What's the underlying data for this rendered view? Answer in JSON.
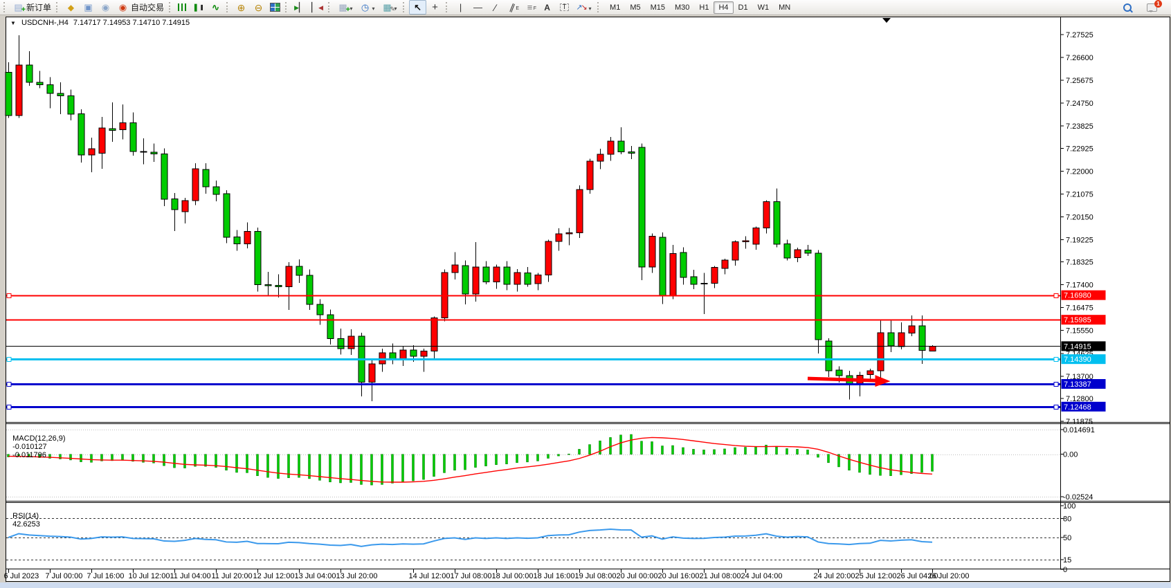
{
  "toolbar": {
    "groups": [
      {
        "name": "trade",
        "items": [
          {
            "name": "new-order",
            "icon": "new-order",
            "label": "新订单"
          }
        ]
      },
      {
        "name": "quick",
        "items": [
          {
            "name": "market-watch",
            "icon": "market-watch"
          },
          {
            "name": "profile",
            "icon": "profile"
          },
          {
            "name": "signals",
            "icon": "signals"
          },
          {
            "name": "autotrading",
            "icon": "autotrading",
            "label": "自动交易"
          }
        ]
      },
      {
        "name": "chart-type",
        "items": [
          {
            "name": "bar-chart",
            "icon": "bar-chart"
          },
          {
            "name": "candlestick-chart",
            "icon": "candlestick-chart"
          },
          {
            "name": "line-chart",
            "icon": "line-chart"
          }
        ]
      },
      {
        "name": "zoom",
        "items": [
          {
            "name": "zoom-in",
            "icon": "zoom-in"
          },
          {
            "name": "zoom-out",
            "icon": "zoom-out"
          },
          {
            "name": "tile-windows",
            "icon": "tile-windows"
          }
        ]
      },
      {
        "name": "scroll",
        "items": [
          {
            "name": "auto-scroll",
            "icon": "auto-scroll"
          },
          {
            "name": "chart-shift",
            "icon": "chart-shift"
          }
        ]
      },
      {
        "name": "insert",
        "items": [
          {
            "name": "indicators",
            "icon": "indicators",
            "dropdown": true
          },
          {
            "name": "periods",
            "icon": "periods",
            "dropdown": true
          },
          {
            "name": "templates",
            "icon": "templates",
            "dropdown": true
          }
        ]
      },
      {
        "name": "pointer",
        "items": [
          {
            "name": "cursor",
            "icon": "cursor",
            "pressed": true
          },
          {
            "name": "crosshair",
            "icon": "crosshair"
          }
        ]
      },
      {
        "name": "objects",
        "items": [
          {
            "name": "vertical-line",
            "icon": "vertical-line"
          },
          {
            "name": "horizontal-line",
            "icon": "horizontal-line"
          },
          {
            "name": "trendline",
            "icon": "trendline"
          },
          {
            "name": "equidistant-channel",
            "icon": "equidistant-channel"
          },
          {
            "name": "fibonacci",
            "icon": "fibonacci"
          },
          {
            "name": "text",
            "icon": "text"
          },
          {
            "name": "text-label",
            "icon": "text-label"
          },
          {
            "name": "arrows",
            "icon": "arrows",
            "dropdown": true
          }
        ]
      }
    ],
    "timeframes": {
      "options": [
        "M1",
        "M5",
        "M15",
        "M30",
        "H1",
        "H4",
        "D1",
        "W1",
        "MN"
      ],
      "active": "H4"
    },
    "right": [
      {
        "name": "search",
        "icon": "search"
      },
      {
        "name": "chat",
        "icon": "chat",
        "badge": "1"
      }
    ]
  },
  "chart_window": {
    "title": "USDCNH-,H4",
    "ohlc": "7.14717 7.14953 7.14710 7.14915"
  },
  "chart_data": {
    "type": "candlestick",
    "symbol": "USDCNH-",
    "timeframe": "H4",
    "bull_color": "#FF0000",
    "bear_color": "#00CC00",
    "price_ticks": [
      "7.27525",
      "7.26600",
      "7.25675",
      "7.24750",
      "7.23825",
      "7.22925",
      "7.22000",
      "7.21075",
      "7.20150",
      "7.19225",
      "7.18325",
      "7.17400",
      "7.16475",
      "7.15550",
      "7.14625",
      "7.13700",
      "7.12800",
      "7.11875"
    ],
    "candles": [
      [
        7.26,
        7.264,
        7.2415,
        7.2425
      ],
      [
        7.2425,
        7.275,
        7.2415,
        7.263
      ],
      [
        7.263,
        7.2685,
        7.2545,
        7.256
      ],
      [
        7.256,
        7.2605,
        7.2535,
        7.255
      ],
      [
        7.255,
        7.258,
        7.2455,
        7.2515
      ],
      [
        7.2515,
        7.256,
        7.243,
        7.2505
      ],
      [
        7.2505,
        7.253,
        7.2405,
        7.243
      ],
      [
        7.2432,
        7.245,
        7.2235,
        7.2265
      ],
      [
        7.2265,
        7.2335,
        7.2195,
        7.229
      ],
      [
        7.2272,
        7.242,
        7.221,
        7.2375
      ],
      [
        7.2372,
        7.2478,
        7.2318,
        7.2365
      ],
      [
        7.2368,
        7.247,
        7.2328,
        7.2395
      ],
      [
        7.2395,
        7.2438,
        7.2262,
        7.228
      ],
      [
        7.228,
        7.2332,
        7.2228,
        7.2276
      ],
      [
        7.2276,
        7.2312,
        7.2238,
        7.227
      ],
      [
        7.227,
        7.2292,
        7.2058,
        7.2086
      ],
      [
        7.2088,
        7.2112,
        7.1958,
        7.2044
      ],
      [
        7.2036,
        7.2092,
        7.1988,
        7.208
      ],
      [
        7.208,
        7.2232,
        7.2062,
        7.221
      ],
      [
        7.2206,
        7.2232,
        7.2108,
        7.2136
      ],
      [
        7.2136,
        7.2162,
        7.2078,
        7.2106
      ],
      [
        7.2108,
        7.2122,
        7.1908,
        7.1932
      ],
      [
        7.1934,
        7.1962,
        7.1878,
        7.1906
      ],
      [
        7.1906,
        7.1992,
        7.1888,
        7.1956
      ],
      [
        7.1956,
        7.1972,
        7.1712,
        7.174
      ],
      [
        7.174,
        7.1792,
        7.1698,
        7.1736
      ],
      [
        7.1738,
        7.1782,
        7.1688,
        7.1732
      ],
      [
        7.1732,
        7.1832,
        7.1638,
        7.1814
      ],
      [
        7.1814,
        7.1842,
        7.1748,
        7.1778
      ],
      [
        7.1778,
        7.1802,
        7.1638,
        7.166
      ],
      [
        7.166,
        7.1682,
        7.1578,
        7.1618
      ],
      [
        7.1618,
        7.164,
        7.1498,
        7.1522
      ],
      [
        7.1522,
        7.1562,
        7.1458,
        7.1482
      ],
      [
        7.1482,
        7.156,
        7.1456,
        7.1532
      ],
      [
        7.1532,
        7.1546,
        7.1288,
        7.1346
      ],
      [
        7.1346,
        7.1442,
        7.1268,
        7.142
      ],
      [
        7.142,
        7.1482,
        7.1388,
        7.1464
      ],
      [
        7.1464,
        7.1502,
        7.1418,
        7.144
      ],
      [
        7.144,
        7.1492,
        7.1412,
        7.1476
      ],
      [
        7.1476,
        7.1496,
        7.1428,
        7.145
      ],
      [
        7.145,
        7.1482,
        7.1388,
        7.1472
      ],
      [
        7.1472,
        7.1612,
        7.1438,
        7.1606
      ],
      [
        7.1606,
        7.1802,
        7.1592,
        7.179
      ],
      [
        7.179,
        7.1872,
        7.1762,
        7.182
      ],
      [
        7.1818,
        7.1838,
        7.166,
        7.1702
      ],
      [
        7.1702,
        7.1912,
        7.1672,
        7.1812
      ],
      [
        7.1812,
        7.1836,
        7.1742,
        7.1752
      ],
      [
        7.1752,
        7.1822,
        7.1724,
        7.1812
      ],
      [
        7.1812,
        7.1836,
        7.1718,
        7.1742
      ],
      [
        7.1742,
        7.1804,
        7.1712,
        7.179
      ],
      [
        7.1788,
        7.1812,
        7.1732,
        7.1742
      ],
      [
        7.1744,
        7.1788,
        7.1718,
        7.178
      ],
      [
        7.178,
        7.1922,
        7.1752,
        7.1916
      ],
      [
        7.1916,
        7.1968,
        7.1878,
        7.1946
      ],
      [
        7.1946,
        7.197,
        7.19,
        7.195
      ],
      [
        7.195,
        7.2142,
        7.193,
        7.2126
      ],
      [
        7.2126,
        7.225,
        7.2108,
        7.224
      ],
      [
        7.224,
        7.229,
        7.2208,
        7.2268
      ],
      [
        7.2268,
        7.2338,
        7.2242,
        7.2322
      ],
      [
        7.2322,
        7.2378,
        7.2268,
        7.2278
      ],
      [
        7.2278,
        7.2302,
        7.2248,
        7.2272
      ],
      [
        7.2296,
        7.2312,
        7.1758,
        7.1812
      ],
      [
        7.1812,
        7.1948,
        7.1788,
        7.1936
      ],
      [
        7.1932,
        7.1952,
        7.1662,
        7.1694
      ],
      [
        7.1696,
        7.1902,
        7.1682,
        7.1866
      ],
      [
        7.187,
        7.1892,
        7.174,
        7.177
      ],
      [
        7.1772,
        7.18,
        7.1722,
        7.1742
      ],
      [
        7.1744,
        7.1788,
        7.1622,
        7.1746
      ],
      [
        7.1746,
        7.1816,
        7.1726,
        7.181
      ],
      [
        7.1806,
        7.1846,
        7.1782,
        7.184
      ],
      [
        7.184,
        7.192,
        7.1818,
        7.1914
      ],
      [
        7.1914,
        7.1936,
        7.1886,
        7.1918
      ],
      [
        7.1904,
        7.1976,
        7.1882,
        7.197
      ],
      [
        7.197,
        7.2082,
        7.1948,
        7.2076
      ],
      [
        7.2076,
        7.213,
        7.1892,
        7.1904
      ],
      [
        7.1906,
        7.1922,
        7.1838,
        7.1848
      ],
      [
        7.185,
        7.189,
        7.1832,
        7.1882
      ],
      [
        7.188,
        7.1902,
        7.1856,
        7.1868
      ],
      [
        7.1868,
        7.188,
        7.1462,
        7.1518
      ],
      [
        7.1512,
        7.1524,
        7.1366,
        7.1392
      ],
      [
        7.1394,
        7.141,
        7.1344,
        7.1372
      ],
      [
        7.1372,
        7.1392,
        7.1276,
        7.1336
      ],
      [
        7.1336,
        7.1388,
        7.1288,
        7.1374
      ],
      [
        7.1376,
        7.14,
        7.135,
        7.1392
      ],
      [
        7.1392,
        7.16,
        7.1334,
        7.1546
      ],
      [
        7.1546,
        7.1596,
        7.1468,
        7.1492
      ],
      [
        7.149,
        7.1588,
        7.1478,
        7.1546
      ],
      [
        7.1544,
        7.1616,
        7.1532,
        7.1574
      ],
      [
        7.1574,
        7.1616,
        7.142,
        7.1474
      ],
      [
        7.14717,
        7.14953,
        7.1471,
        7.14915
      ]
    ],
    "levels": [
      {
        "value": "7.16980",
        "color": "#FF0000",
        "width": 2,
        "selected": true
      },
      {
        "value": "7.15985",
        "color": "#FF0000",
        "width": 2,
        "selected": false
      },
      {
        "value": "7.14390",
        "color": "#00BFEF",
        "width": 3,
        "selected": true
      },
      {
        "value": "7.13387",
        "color": "#0000CD",
        "width": 3,
        "selected": true
      },
      {
        "value": "7.12468",
        "color": "#0000CD",
        "width": 3,
        "selected": true
      }
    ],
    "current_price": {
      "value": "7.14915",
      "color": "#000000"
    },
    "annotations": [
      {
        "type": "arrow-right",
        "color": "#FF0000",
        "from_bar": 77,
        "to_bar": 83.5,
        "price": 7.1355
      }
    ],
    "macd": {
      "label": "MACD(12,26,9)",
      "value_main": "-0.010127",
      "value_signal": "-0.011796",
      "axis_labels": [
        "0.014691",
        "0.00",
        "-0.02524"
      ],
      "histogram_color": "#00CC00",
      "signal_color": "#FF0000",
      "histogram": [
        -0.0016,
        -0.001,
        -0.0015,
        -0.002,
        -0.0024,
        -0.0028,
        -0.0034,
        -0.0045,
        -0.0048,
        -0.004,
        -0.0038,
        -0.0036,
        -0.0042,
        -0.0048,
        -0.0052,
        -0.0068,
        -0.008,
        -0.0082,
        -0.0072,
        -0.0072,
        -0.0078,
        -0.0095,
        -0.0108,
        -0.011,
        -0.0128,
        -0.0138,
        -0.0144,
        -0.014,
        -0.0138,
        -0.0145,
        -0.0155,
        -0.0165,
        -0.017,
        -0.0168,
        -0.018,
        -0.0183,
        -0.018,
        -0.0172,
        -0.0165,
        -0.0158,
        -0.015,
        -0.0132,
        -0.011,
        -0.0095,
        -0.0092,
        -0.0078,
        -0.007,
        -0.0062,
        -0.0058,
        -0.005,
        -0.0046,
        -0.004,
        -0.0024,
        -0.001,
        0.0002,
        0.003,
        0.0058,
        0.008,
        0.01,
        0.0115,
        0.0118,
        0.0078,
        0.0075,
        0.005,
        0.0052,
        0.004,
        0.003,
        0.0026,
        0.0028,
        0.0032,
        0.004,
        0.0042,
        0.0046,
        0.0055,
        0.0044,
        0.0034,
        0.003,
        0.0026,
        -0.0018,
        -0.005,
        -0.0075,
        -0.0095,
        -0.0108,
        -0.012,
        -0.0126,
        -0.0128,
        -0.0122,
        -0.0115,
        -0.0108,
        -0.010127
      ],
      "signal": [
        -0.0012,
        -0.0013,
        -0.0014,
        -0.0016,
        -0.0018,
        -0.0021,
        -0.0024,
        -0.0028,
        -0.0032,
        -0.0034,
        -0.0035,
        -0.0035,
        -0.0037,
        -0.0039,
        -0.0042,
        -0.0047,
        -0.0054,
        -0.006,
        -0.0063,
        -0.0065,
        -0.0068,
        -0.0073,
        -0.008,
        -0.0086,
        -0.0095,
        -0.0104,
        -0.0112,
        -0.0118,
        -0.0122,
        -0.0127,
        -0.0133,
        -0.0139,
        -0.0145,
        -0.015,
        -0.0156,
        -0.0161,
        -0.0165,
        -0.0166,
        -0.0166,
        -0.0164,
        -0.0161,
        -0.0155,
        -0.0146,
        -0.0136,
        -0.0127,
        -0.0117,
        -0.0108,
        -0.0099,
        -0.0091,
        -0.0082,
        -0.0075,
        -0.0068,
        -0.0059,
        -0.0049,
        -0.0039,
        -0.0025,
        -0.0005,
        0.0018,
        0.0045,
        0.0068,
        0.0085,
        0.0095,
        0.01,
        0.0098,
        0.0094,
        0.0088,
        0.008,
        0.0072,
        0.0064,
        0.0058,
        0.0052,
        0.0048,
        0.0046,
        0.0046,
        0.0047,
        0.0046,
        0.0044,
        0.004,
        0.003,
        0.0012,
        -0.001,
        -0.003,
        -0.0048,
        -0.0065,
        -0.008,
        -0.0092,
        -0.0101,
        -0.0108,
        -0.0114,
        -0.011796
      ]
    },
    "rsi": {
      "label": "RSI(14)",
      "value": "42.6253",
      "axis_labels": [
        "100",
        "80",
        "50",
        "15",
        "0"
      ],
      "dashed_levels": [
        80,
        50,
        15
      ],
      "line_color": "#3A99EC",
      "series": [
        50,
        56,
        54,
        53,
        52,
        51.5,
        50.5,
        47.5,
        48.5,
        51,
        50.5,
        51,
        48.5,
        48.3,
        48,
        44.5,
        44,
        45.5,
        48.5,
        47,
        46.5,
        43,
        42.5,
        44,
        40.5,
        40.4,
        40.2,
        42.5,
        42,
        40.5,
        39.5,
        38,
        37.5,
        39,
        36,
        38.5,
        39.5,
        39,
        40,
        39.5,
        40,
        44.5,
        48.5,
        49.5,
        47,
        49.5,
        48.5,
        49.5,
        48.5,
        49.5,
        48.8,
        49.5,
        53,
        54,
        54.2,
        58.5,
        61,
        61.8,
        63,
        62,
        61.8,
        50.5,
        52.5,
        47.5,
        51,
        49,
        48.5,
        48.6,
        50,
        50.6,
        52.2,
        52.3,
        53.5,
        55.8,
        52,
        50.5,
        51.5,
        51,
        43,
        40.5,
        40,
        39,
        40.5,
        41,
        45.5,
        44.5,
        45.8,
        46.5,
        43.5,
        42.6253
      ]
    },
    "time_labels": [
      "6 Jul 2023",
      "7 Jul 00:00",
      "7 Jul 16:00",
      "10 Jul 12:00",
      "11 Jul 04:00",
      "11 Jul 20:00",
      "12 Jul 12:00",
      "13 Jul 04:00",
      "13 Jul 20:00",
      "14 Jul 12:00",
      "17 Jul 08:00",
      "18 Jul 00:00",
      "18 Jul 16:00",
      "19 Jul 08:00",
      "20 Jul 00:00",
      "20 Jul 16:00",
      "21 Jul 08:00",
      "24 Jul 04:00",
      "24 Jul 20:00",
      "25 Jul 12:00",
      "26 Jul 04:00",
      "26 Jul 20:00"
    ],
    "time_label_bars": [
      0,
      4,
      8,
      12,
      16,
      20,
      24,
      28,
      32,
      39,
      43,
      47,
      51,
      55,
      59,
      63,
      67,
      71,
      78,
      82,
      86,
      89
    ]
  }
}
